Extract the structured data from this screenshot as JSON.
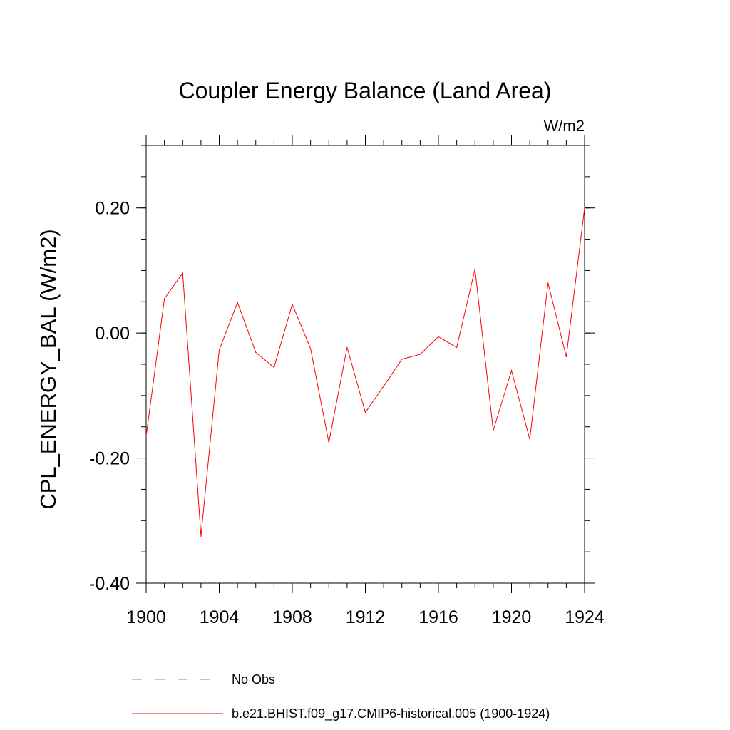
{
  "chart_data": {
    "type": "line",
    "title": "Coupler Energy Balance (Land Area)",
    "units": "W/m2",
    "ylabel": "CPL_ENERGY_BAL  (W/m2)",
    "xlabel": "",
    "xlim": [
      1900,
      1924
    ],
    "ylim": [
      -0.4,
      0.3
    ],
    "xticks": [
      1900,
      1904,
      1908,
      1912,
      1916,
      1920,
      1924
    ],
    "xtick_labels": [
      "1900",
      "1904",
      "1908",
      "1912",
      "1916",
      "1920",
      "1924"
    ],
    "yticks": [
      -0.4,
      -0.2,
      0.0,
      0.2
    ],
    "ytick_labels": [
      "-0.40",
      "-0.20",
      "0.00",
      "0.20"
    ],
    "x_minor_step": 1,
    "y_minor_step": 0.05,
    "grid": false,
    "series": [
      {
        "name": "b.e21.BHIST.f09_g17.CMIP6-historical.005 (1900-1924)",
        "color": "#ff0000",
        "dash": "solid",
        "x": [
          1900,
          1901,
          1902,
          1903,
          1904,
          1905,
          1906,
          1907,
          1908,
          1909,
          1910,
          1911,
          1912,
          1913,
          1914,
          1915,
          1916,
          1917,
          1918,
          1919,
          1920,
          1921,
          1922,
          1923,
          1924
        ],
        "values": [
          -0.165,
          0.055,
          0.096,
          -0.325,
          -0.027,
          0.049,
          -0.031,
          -0.055,
          0.046,
          -0.025,
          -0.175,
          -0.023,
          -0.127,
          -0.085,
          -0.042,
          -0.034,
          -0.006,
          -0.023,
          0.102,
          -0.156,
          -0.06,
          -0.17,
          0.08,
          -0.038,
          0.2
        ]
      }
    ],
    "legend": {
      "position": "bottom",
      "entries": [
        {
          "label": "No Obs",
          "color": "#8080c0",
          "dash": "dashed"
        },
        {
          "label": "b.e21.BHIST.f09_g17.CMIP6-historical.005 (1900-1924)",
          "color": "#ff0000",
          "dash": "solid"
        }
      ]
    }
  }
}
